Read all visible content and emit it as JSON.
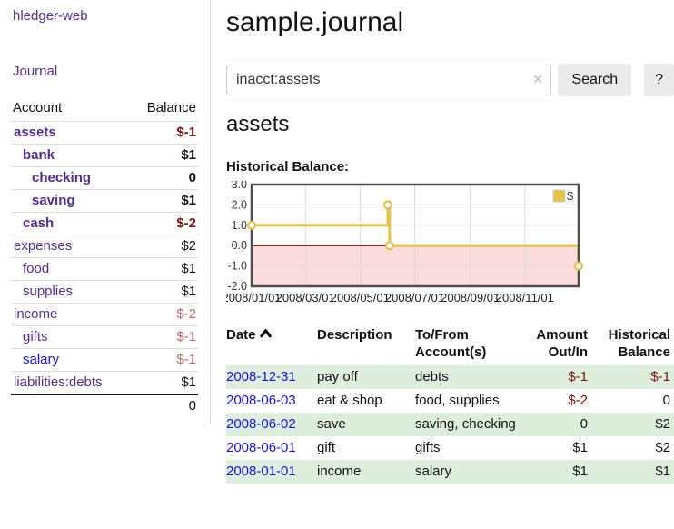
{
  "sidebar": {
    "app_title": "hledger-web",
    "nav_journal": "Journal",
    "accounts_table": {
      "header_account": "Account",
      "header_balance": "Balance",
      "rows": [
        {
          "name": "assets",
          "indent": 1,
          "bold": true,
          "balance": "$-1",
          "negative": true,
          "link_color": "purple"
        },
        {
          "name": "bank",
          "indent": 2,
          "bold": true,
          "balance": "$1",
          "negative": false,
          "link_color": "purple"
        },
        {
          "name": "checking",
          "indent": 3,
          "bold": true,
          "balance": "0",
          "negative": false,
          "link_color": "purple"
        },
        {
          "name": "saving",
          "indent": 3,
          "bold": true,
          "balance": "$1",
          "negative": false,
          "link_color": "purple"
        },
        {
          "name": "cash",
          "indent": 2,
          "bold": true,
          "balance": "$-2",
          "negative": true,
          "link_color": "purple"
        },
        {
          "name": "expenses",
          "indent": 1,
          "bold": false,
          "balance": "$2",
          "negative": false,
          "link_color": "purple"
        },
        {
          "name": "food",
          "indent": 2,
          "bold": false,
          "balance": "$1",
          "negative": false,
          "link_color": "purple"
        },
        {
          "name": "supplies",
          "indent": 2,
          "bold": false,
          "balance": "$1",
          "negative": false,
          "link_color": "purple"
        },
        {
          "name": "income",
          "indent": 1,
          "bold": false,
          "balance": "$-2",
          "negative": true,
          "link_color": "purple"
        },
        {
          "name": "gifts",
          "indent": 2,
          "bold": false,
          "balance": "$-1",
          "negative": true,
          "link_color": "purple"
        },
        {
          "name": "salary",
          "indent": 2,
          "bold": false,
          "balance": "$-1",
          "negative": true,
          "link_color": "blue"
        },
        {
          "name": "liabilities:debts",
          "indent": 1,
          "bold": false,
          "balance": "$1",
          "negative": false,
          "link_color": "purple"
        }
      ],
      "total": "0"
    }
  },
  "header": {
    "title": "sample.journal"
  },
  "search": {
    "value": "inacct:assets",
    "clear_icon": "×",
    "search_label": "Search",
    "help_label": "?"
  },
  "account_page": {
    "heading": "assets",
    "chart_label": "Historical Balance:"
  },
  "chart_data": {
    "type": "line",
    "title": "Historical Balance:",
    "series": [
      {
        "name": "$",
        "step": true,
        "points": [
          {
            "x": "2008-01-01",
            "y": 1
          },
          {
            "x": "2008-06-01",
            "y": 2
          },
          {
            "x": "2008-06-03",
            "y": 0
          },
          {
            "x": "2008-12-31",
            "y": -1
          }
        ]
      }
    ],
    "x_range": [
      "2008-01-01",
      "2008-12-31"
    ],
    "ylim": [
      -2,
      3
    ],
    "y_ticks": [
      {
        "v": 3,
        "label": "3.0"
      },
      {
        "v": 2,
        "label": "2.0"
      },
      {
        "v": 1,
        "label": "1.0"
      },
      {
        "v": 0,
        "label": "0.0"
      },
      {
        "v": -1,
        "label": "-1.0"
      },
      {
        "v": -2,
        "label": "-2.0"
      }
    ],
    "x_ticks": [
      {
        "date": "2008-01-01",
        "label": "2008/01/01"
      },
      {
        "date": "2008-03-01",
        "label": "2008/03/01"
      },
      {
        "date": "2008-05-01",
        "label": "2008/05/01"
      },
      {
        "date": "2008-07-01",
        "label": "2008/07/01"
      },
      {
        "date": "2008-09-01",
        "label": "2008/09/01"
      },
      {
        "date": "2008-11-01",
        "label": "2008/11/01"
      }
    ],
    "legend": {
      "label": "$",
      "position": "top-right"
    },
    "grid": true,
    "colors": {
      "line": "#e5c04f",
      "marker_fill": "#ffffff",
      "negative_region": "#fbdcdc",
      "zero_line": "#990000",
      "grid": "#d9d9d9",
      "border": "#4d4d4d",
      "legend_swatch": "#e8c24a"
    }
  },
  "register": {
    "header_date": "Date",
    "header_description": "Description",
    "header_accounts": "To/From Account(s)",
    "header_amount": "Amount Out/In",
    "header_balance": "Historical Balance",
    "rows": [
      {
        "date": "2008-12-31",
        "description": "pay off",
        "accounts": "debts",
        "amount": "$-1",
        "amount_negative": true,
        "balance": "$-1",
        "balance_negative": true
      },
      {
        "date": "2008-06-03",
        "description": "eat & shop",
        "accounts": "food, supplies",
        "amount": "$-2",
        "amount_negative": true,
        "balance": "0",
        "balance_negative": false
      },
      {
        "date": "2008-06-02",
        "description": "save",
        "accounts": "saving, checking",
        "amount": "0",
        "amount_negative": false,
        "balance": "$2",
        "balance_negative": false
      },
      {
        "date": "2008-06-01",
        "description": "gift",
        "accounts": "gifts",
        "amount": "$1",
        "amount_negative": false,
        "balance": "$2",
        "balance_negative": false
      },
      {
        "date": "2008-01-01",
        "description": "income",
        "accounts": "salary",
        "amount": "$1",
        "amount_negative": false,
        "balance": "$1",
        "balance_negative": false
      }
    ]
  }
}
